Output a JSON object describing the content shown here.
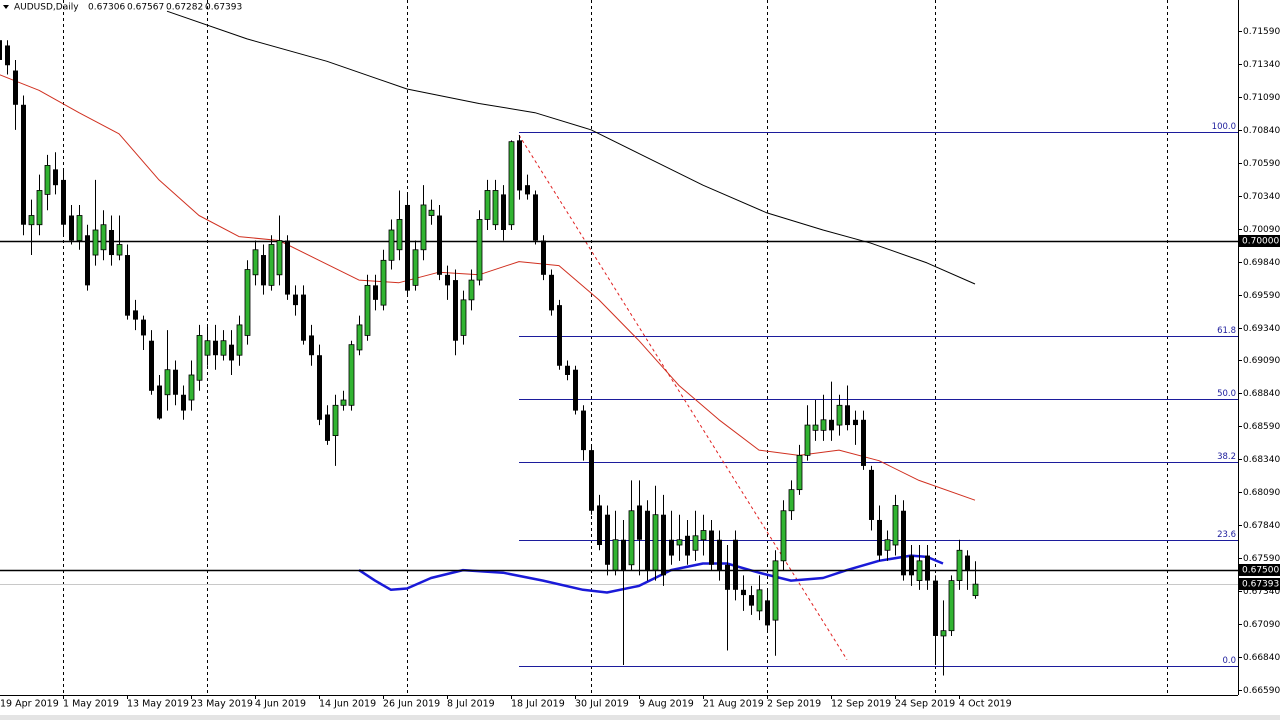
{
  "chart_data": {
    "type": "candlestick",
    "title": "AUDUSD,Daily",
    "categories": [
      "19 Apr 2019",
      null,
      null,
      null,
      null,
      null,
      null,
      null,
      "1 May 2019",
      null,
      null,
      null,
      null,
      null,
      null,
      null,
      "13 May 2019",
      null,
      null,
      null,
      null,
      null,
      null,
      null,
      "23 May 2019",
      null,
      null,
      null,
      null,
      null,
      null,
      null,
      "4 Jun 2019",
      null,
      null,
      null,
      null,
      null,
      null,
      null,
      "14 Jun 2019",
      null,
      null,
      null,
      null,
      null,
      null,
      null,
      "26 Jun 2019",
      null,
      null,
      null,
      null,
      null,
      null,
      null,
      "8 Jul 2019",
      null,
      null,
      null,
      null,
      null,
      null,
      null,
      "18 Jul 2019",
      null,
      null,
      null,
      null,
      null,
      null,
      null,
      "30 Jul 2019",
      null,
      null,
      null,
      null,
      null,
      null,
      null,
      "9 Aug 2019",
      null,
      null,
      null,
      null,
      null,
      null,
      null,
      "21 Aug 2019",
      null,
      null,
      null,
      null,
      null,
      null,
      null,
      "2 Sep 2019",
      null,
      null,
      null,
      null,
      null,
      null,
      null,
      "12 Sep 2019",
      null,
      null,
      null,
      null,
      null,
      null,
      null,
      "24 Sep 2019",
      null,
      null,
      null,
      null,
      null,
      null,
      null,
      "4 Oct 2019",
      null,
      null
    ],
    "open": [
      0.7152,
      0.7148,
      0.7129,
      0.7103,
      0.7012,
      0.7012,
      0.7035,
      0.7054,
      0.7046,
      0.7019,
      0.7,
      0.7004,
      0.6989,
      0.6993,
      0.7008,
      0.6989,
      0.6989,
      0.6947,
      0.694,
      0.6924,
      0.689,
      0.6883,
      0.6902,
      0.6883,
      0.6879,
      0.6894,
      0.6913,
      0.6924,
      0.6913,
      0.6921,
      0.6913,
      0.6928,
      0.6974,
      0.6989,
      0.6966,
      0.6974,
      0.7,
      0.6959,
      0.6959,
      0.6928,
      0.6913,
      0.6868,
      0.6852,
      0.6875,
      0.6875,
      0.6917,
      0.6928,
      0.6966,
      0.6951,
      0.6985,
      0.6993,
      0.7027,
      0.6966,
      0.6993,
      0.7019,
      0.7019,
      0.6974,
      0.697,
      0.6928,
      0.6955,
      0.697,
      0.7016,
      0.7012,
      0.7035,
      0.7012,
      0.7076,
      0.7042,
      0.7035,
      0.7,
      0.6974,
      0.6951,
      0.6905,
      0.6902,
      0.6871,
      0.6841,
      0.6799,
      0.6792,
      0.675,
      0.6773,
      0.6754,
      0.6799,
      0.6795,
      0.675,
      0.6792,
      0.6773,
      0.6769,
      0.6776,
      0.6765,
      0.6773,
      0.678,
      0.6773,
      0.6754,
      0.6773,
      0.6735,
      0.6731,
      0.6719,
      0.6727,
      0.6712,
      0.6757,
      0.6795,
      0.6811,
      0.6837,
      0.6856,
      0.6856,
      0.6864,
      0.686,
      0.6875,
      0.6864,
      0.6864,
      0.6826,
      0.6788,
      0.6765,
      0.6769,
      0.6795,
      0.6761,
      0.6742,
      0.6761,
      0.6742,
      0.67,
      0.6704,
      0.6742,
      0.6761,
      0.67306
    ],
    "high": [
      0.7156,
      0.7152,
      0.7137,
      0.711,
      0.7031,
      0.705,
      0.7065,
      0.7067,
      0.7054,
      0.7027,
      0.7027,
      0.7012,
      0.7046,
      0.7023,
      0.7019,
      0.7019,
      0.6997,
      0.6955,
      0.6943,
      0.6932,
      0.6898,
      0.6932,
      0.6909,
      0.689,
      0.6909,
      0.6936,
      0.6936,
      0.6936,
      0.6932,
      0.6932,
      0.6943,
      0.6985,
      0.7,
      0.6997,
      0.7004,
      0.7019,
      0.7004,
      0.6966,
      0.6966,
      0.6936,
      0.6921,
      0.6875,
      0.6883,
      0.6886,
      0.6924,
      0.6943,
      0.6974,
      0.6974,
      0.6993,
      0.7016,
      0.7038,
      0.7035,
      0.7,
      0.7042,
      0.7031,
      0.7027,
      0.6981,
      0.6978,
      0.6962,
      0.6978,
      0.7023,
      0.7046,
      0.7046,
      0.7042,
      0.7076,
      0.708,
      0.705,
      0.7038,
      0.7004,
      0.6978,
      0.6955,
      0.6909,
      0.6905,
      0.6875,
      0.6845,
      0.6807,
      0.6799,
      0.6795,
      0.6788,
      0.6818,
      0.6818,
      0.6803,
      0.6814,
      0.6807,
      0.6795,
      0.6792,
      0.6788,
      0.6795,
      0.6792,
      0.6788,
      0.678,
      0.6769,
      0.678,
      0.6746,
      0.6738,
      0.6746,
      0.6735,
      0.6765,
      0.6803,
      0.6818,
      0.6845,
      0.6875,
      0.6879,
      0.6883,
      0.6893,
      0.6883,
      0.689,
      0.6871,
      0.6871,
      0.6829,
      0.6799,
      0.678,
      0.6807,
      0.6803,
      0.6769,
      0.6769,
      0.6769,
      0.6746,
      0.6727,
      0.6746,
      0.6773,
      0.6765,
      0.67567
    ],
    "low": [
      0.7129,
      0.7126,
      0.7084,
      0.7004,
      0.6989,
      0.7004,
      0.7023,
      0.7035,
      0.7004,
      0.6997,
      0.6993,
      0.6962,
      0.6981,
      0.6985,
      0.6981,
      0.6985,
      0.694,
      0.6932,
      0.6917,
      0.6883,
      0.6864,
      0.6871,
      0.6875,
      0.6864,
      0.6871,
      0.6886,
      0.6905,
      0.6902,
      0.6909,
      0.6898,
      0.6905,
      0.6921,
      0.6966,
      0.6959,
      0.6962,
      0.6966,
      0.6955,
      0.6943,
      0.6921,
      0.6905,
      0.686,
      0.6845,
      0.6829,
      0.6871,
      0.6871,
      0.6913,
      0.6924,
      0.6947,
      0.6947,
      0.6978,
      0.6985,
      0.6959,
      0.6962,
      0.6985,
      0.7012,
      0.697,
      0.6955,
      0.6913,
      0.6921,
      0.6947,
      0.6966,
      0.7008,
      0.7008,
      0.7,
      0.7008,
      0.7031,
      0.7031,
      0.6997,
      0.697,
      0.6943,
      0.6902,
      0.6894,
      0.6868,
      0.6833,
      0.6792,
      0.6765,
      0.6746,
      0.6746,
      0.6678,
      0.675,
      0.6746,
      0.6742,
      0.6742,
      0.6738,
      0.6754,
      0.6757,
      0.6754,
      0.6757,
      0.6761,
      0.675,
      0.6742,
      0.6689,
      0.6727,
      0.6719,
      0.6716,
      0.6712,
      0.6704,
      0.6685,
      0.675,
      0.6788,
      0.6807,
      0.6833,
      0.6848,
      0.6848,
      0.6848,
      0.6852,
      0.6856,
      0.6845,
      0.6826,
      0.678,
      0.6757,
      0.6757,
      0.6761,
      0.6742,
      0.6738,
      0.6735,
      0.6735,
      0.6678,
      0.667,
      0.67,
      0.6735,
      0.6735,
      0.67282
    ],
    "close": [
      0.7137,
      0.7133,
      0.7103,
      0.7012,
      0.7019,
      0.7038,
      0.7057,
      0.7042,
      0.7012,
      0.7,
      0.7019,
      0.6966,
      0.7008,
      0.7012,
      0.6989,
      0.6997,
      0.6943,
      0.694,
      0.6928,
      0.6886,
      0.6865,
      0.6902,
      0.6883,
      0.6871,
      0.6898,
      0.6928,
      0.6924,
      0.6913,
      0.6924,
      0.6909,
      0.6936,
      0.6978,
      0.6993,
      0.6966,
      0.6997,
      0.7,
      0.6959,
      0.6951,
      0.6924,
      0.6913,
      0.6864,
      0.6848,
      0.6875,
      0.6879,
      0.6921,
      0.6936,
      0.6966,
      0.6955,
      0.6985,
      0.7008,
      0.7016,
      0.6962,
      0.6993,
      0.7027,
      0.7023,
      0.6974,
      0.6966,
      0.6924,
      0.6955,
      0.697,
      0.7016,
      0.7038,
      0.7038,
      0.7008,
      0.7075,
      0.7038,
      0.7035,
      0.7,
      0.6974,
      0.6947,
      0.6905,
      0.6898,
      0.6871,
      0.6841,
      0.6795,
      0.6769,
      0.6754,
      0.6773,
      0.675,
      0.6795,
      0.6773,
      0.675,
      0.6792,
      0.6746,
      0.6761,
      0.6773,
      0.6761,
      0.6776,
      0.678,
      0.6754,
      0.675,
      0.6735,
      0.6735,
      0.6731,
      0.6723,
      0.6735,
      0.6708,
      0.6757,
      0.6795,
      0.6811,
      0.6837,
      0.686,
      0.686,
      0.6864,
      0.6856,
      0.6875,
      0.686,
      0.686,
      0.6829,
      0.6788,
      0.6761,
      0.6773,
      0.6799,
      0.6746,
      0.6746,
      0.6757,
      0.6742,
      0.67,
      0.6704,
      0.6742,
      0.6765,
      0.675,
      0.67393
    ],
    "up_color": "#32b432",
    "down_color": "#000000",
    "ylim": [
      0.66552,
      0.71825
    ],
    "yticks": [
      {
        "value": 0.7159,
        "label": "0.71590"
      },
      {
        "value": 0.7134,
        "label": "0.71340"
      },
      {
        "value": 0.7109,
        "label": "0.71090"
      },
      {
        "value": 0.7084,
        "label": "0.70840"
      },
      {
        "value": 0.7059,
        "label": "0.70590"
      },
      {
        "value": 0.7034,
        "label": "0.70340"
      },
      {
        "value": 0.7009,
        "label": "0.70090"
      },
      {
        "value": 0.6984,
        "label": "0.69840"
      },
      {
        "value": 0.6959,
        "label": "0.69590"
      },
      {
        "value": 0.6934,
        "label": "0.69340"
      },
      {
        "value": 0.6909,
        "label": "0.69090"
      },
      {
        "value": 0.6884,
        "label": "0.68840"
      },
      {
        "value": 0.6859,
        "label": "0.68590"
      },
      {
        "value": 0.6834,
        "label": "0.68340"
      },
      {
        "value": 0.6809,
        "label": "0.68090"
      },
      {
        "value": 0.6784,
        "label": "0.67840"
      },
      {
        "value": 0.6759,
        "label": "0.67590"
      },
      {
        "value": 0.6734,
        "label": "0.67340"
      },
      {
        "value": 0.6709,
        "label": "0.67090"
      },
      {
        "value": 0.6684,
        "label": "0.66840"
      },
      {
        "value": 0.6659,
        "label": "0.66590"
      }
    ],
    "hlines": [
      {
        "value": 0.7,
        "label": "0.70000"
      },
      {
        "value": 0.675,
        "label": "0.67500"
      }
    ],
    "separators": [
      8,
      26,
      51,
      74,
      96,
      117,
      146
    ],
    "lines": [
      {
        "color": "#000000",
        "width": 1,
        "x": [
          21,
          31,
          41,
          51,
          60,
          67,
          74,
          80,
          88,
          96,
          103,
          109,
          116,
          122
        ],
        "values": [
          0.7174,
          0.7153,
          0.7136,
          0.7115,
          0.7104,
          0.7097,
          0.7084,
          0.7066,
          0.7042,
          0.7021,
          0.7008,
          0.6998,
          0.6983,
          0.6967
        ]
      },
      {
        "color": "#d03020",
        "width": 1,
        "x": [
          0,
          5,
          10,
          15,
          20,
          25,
          30,
          35,
          40,
          45,
          50,
          55,
          60,
          65,
          70,
          75,
          80,
          85,
          90,
          95,
          100,
          105,
          110,
          115,
          122
        ],
        "values": [
          0.7126,
          0.7114,
          0.7097,
          0.7081,
          0.7046,
          0.7019,
          0.7003,
          0.7,
          0.6985,
          0.697,
          0.6968,
          0.6976,
          0.6974,
          0.6984,
          0.6981,
          0.6955,
          0.6924,
          0.689,
          0.6864,
          0.6841,
          0.6837,
          0.6841,
          0.6833,
          0.6818,
          0.6803
        ]
      },
      {
        "color": "#1a1ad8",
        "width": 2.5,
        "x": [
          45,
          47,
          49,
          51,
          54,
          58,
          63,
          68,
          73,
          76,
          80,
          84,
          88,
          91,
          95,
          99,
          103,
          106,
          110,
          114,
          116,
          118
        ],
        "values": [
          0.675,
          0.6742,
          0.6735,
          0.6736,
          0.6744,
          0.675,
          0.6748,
          0.6742,
          0.6735,
          0.6733,
          0.6738,
          0.675,
          0.6755,
          0.6755,
          0.6748,
          0.6742,
          0.6744,
          0.675,
          0.6757,
          0.6761,
          0.676,
          0.6755
        ]
      }
    ],
    "trendline": {
      "color": "#e02020",
      "x": [
        65,
        106
      ],
      "values": [
        0.708,
        0.6682
      ]
    },
    "fibonacci": {
      "color": "#1c1c9c",
      "start": 65,
      "high": 0.7082,
      "low": 0.6677,
      "levels": [
        {
          "value": 100,
          "label": "100.0"
        },
        {
          "value": 61.8,
          "label": "61.8"
        },
        {
          "value": 50,
          "label": "50.0"
        },
        {
          "value": 38.2,
          "label": "38.2"
        },
        {
          "value": 23.6,
          "label": "23.6"
        },
        {
          "value": 0,
          "label": "0.0"
        }
      ]
    }
  }
}
